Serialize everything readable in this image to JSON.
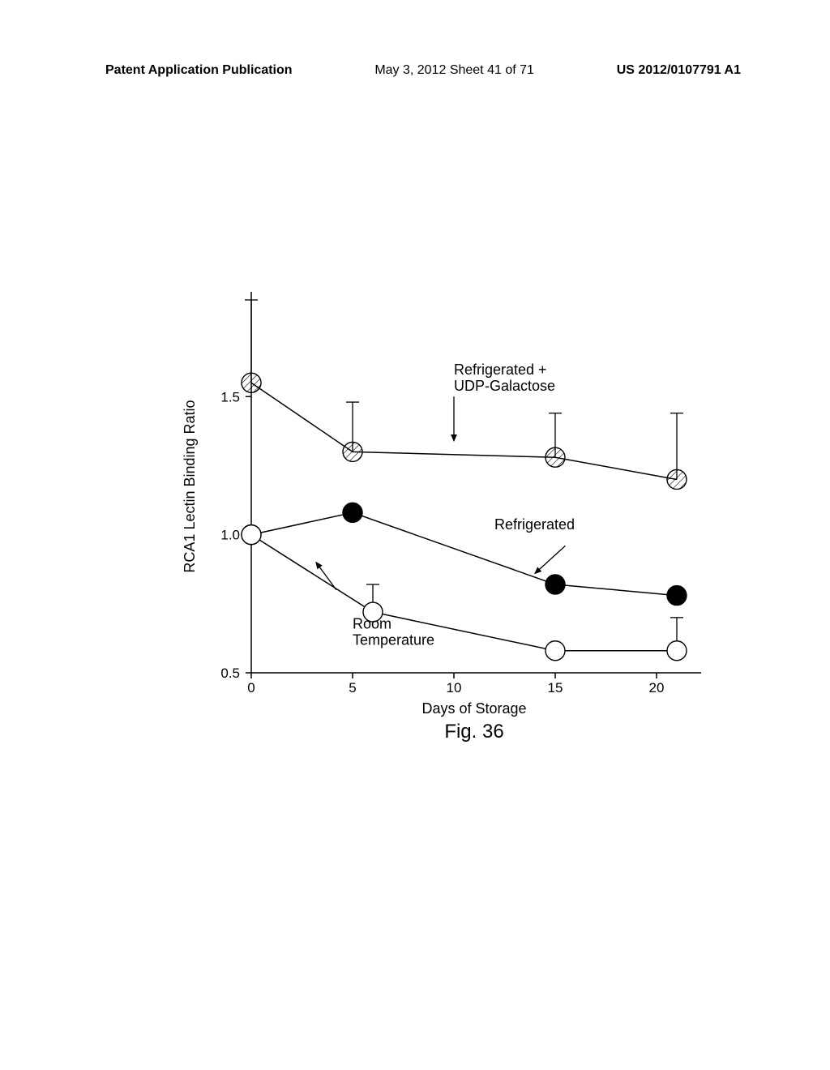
{
  "header": {
    "left": "Patent Application Publication",
    "center": "May 3, 2012  Sheet 41 of 71",
    "right": "US 2012/0107791 A1"
  },
  "chart": {
    "type": "line",
    "x_axis": {
      "title": "Days of Storage",
      "min": 0,
      "max": 22,
      "ticks": [
        0,
        5,
        10,
        15,
        20
      ],
      "title_fontsize": 18
    },
    "y_axis": {
      "title": "RCA1 Lectin Binding Ratio",
      "min": 0.5,
      "max": 1.85,
      "ticks": [
        0.5,
        1.0,
        1.5
      ],
      "title_fontsize": 18
    },
    "series": [
      {
        "name": "Refrigerated + UDP-Galactose",
        "label_lines": [
          "Refrigerated +",
          "UDP-Galactose"
        ],
        "marker": "hatched-circle",
        "marker_size": 12,
        "color": "#000000",
        "fill": "hatch",
        "line_width": 1.5,
        "points": [
          {
            "x": 0,
            "y": 1.55,
            "err": 0.3
          },
          {
            "x": 5,
            "y": 1.3,
            "err": 0.18
          },
          {
            "x": 15,
            "y": 1.28,
            "err": 0.16
          },
          {
            "x": 21,
            "y": 1.2,
            "err": 0.24
          }
        ],
        "label_pos": {
          "x": 10,
          "y": 1.58
        },
        "arrow": {
          "from": {
            "x": 10,
            "y": 1.5
          },
          "to": {
            "x": 10,
            "y": 1.34
          }
        }
      },
      {
        "name": "Refrigerated",
        "label_lines": [
          "Refrigerated"
        ],
        "marker": "filled-circle",
        "marker_size": 12,
        "color": "#000000",
        "fill": "#000000",
        "line_width": 1.5,
        "points": [
          {
            "x": 0,
            "y": 1.0,
            "err": 0
          },
          {
            "x": 5,
            "y": 1.08,
            "err": 0
          },
          {
            "x": 15,
            "y": 0.82,
            "err": 0
          },
          {
            "x": 21,
            "y": 0.78,
            "err": 0
          }
        ],
        "label_pos": {
          "x": 12,
          "y": 1.02
        },
        "arrow": {
          "from": {
            "x": 15.5,
            "y": 0.96
          },
          "to": {
            "x": 14,
            "y": 0.86
          }
        }
      },
      {
        "name": "Room Temperature",
        "label_lines": [
          "Room",
          "Temperature"
        ],
        "marker": "open-circle",
        "marker_size": 12,
        "color": "#000000",
        "fill": "#ffffff",
        "line_width": 1.5,
        "points": [
          {
            "x": 0,
            "y": 1.0,
            "err": 0
          },
          {
            "x": 6,
            "y": 0.72,
            "err": 0.1
          },
          {
            "x": 15,
            "y": 0.58,
            "err": 0
          },
          {
            "x": 21,
            "y": 0.58,
            "err": 0.12
          }
        ],
        "label_pos": {
          "x": 5,
          "y": 0.66
        },
        "arrow": {
          "from": {
            "x": 4.2,
            "y": 0.8
          },
          "to": {
            "x": 3.2,
            "y": 0.9
          }
        }
      }
    ],
    "figure_label": "Fig. 36",
    "background_color": "#ffffff",
    "axis_color": "#000000",
    "axis_width": 1.5
  }
}
